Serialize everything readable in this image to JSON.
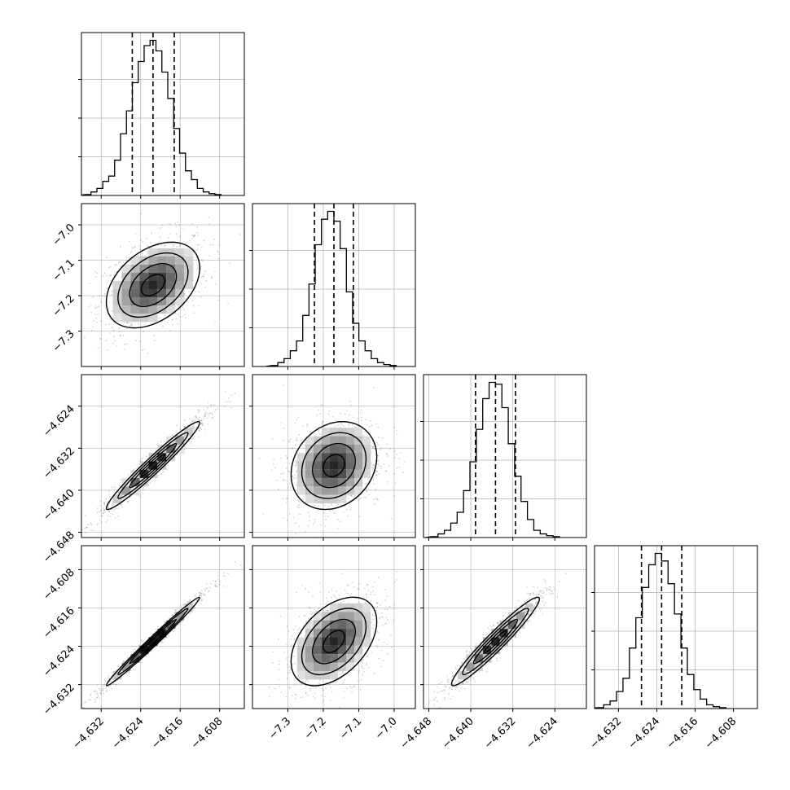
{
  "chart_data": {
    "type": "corner",
    "n_parameters": 4,
    "parameter_labels": [
      "",
      "",
      "",
      ""
    ],
    "parameters": [
      {
        "median": -4.6215,
        "q16": -4.6257,
        "q84": -4.6172,
        "sigma": 0.0043,
        "range": [
          -4.636,
          -4.603
        ],
        "ticks": [
          -4.632,
          -4.624,
          -4.616,
          -4.608
        ],
        "tick_labels": [
          "−4.632",
          "−4.624",
          "−4.616",
          "−4.608"
        ],
        "hist": [
          0.5,
          2,
          4,
          8,
          11,
          20,
          35,
          48,
          64,
          76,
          85,
          88,
          82,
          70,
          55,
          38,
          24,
          14,
          9,
          4,
          2,
          1,
          0.5
        ]
      },
      {
        "median": -7.17,
        "q16": -7.225,
        "q84": -7.115,
        "sigma": 0.055,
        "range": [
          -7.4,
          -6.94
        ],
        "ticks": [
          -7.3,
          -7.2,
          -7.1,
          -7.0
        ],
        "tick_labels": [
          "−7.3",
          "−7.2",
          "−7.1",
          "−7.0"
        ],
        "hist": [
          0.5,
          2,
          4,
          8,
          13,
          26,
          42,
          62,
          75,
          79,
          74,
          60,
          38,
          22,
          13,
          8,
          4,
          2,
          1,
          0.5
        ]
      },
      {
        "median": -4.6353,
        "q16": -4.6391,
        "q84": -4.6315,
        "sigma": 0.0038,
        "range": [
          -4.649,
          -4.618
        ],
        "ticks": [
          -4.648,
          -4.64,
          -4.632,
          -4.624
        ],
        "tick_labels": [
          "−4.648",
          "−4.640",
          "−4.632",
          "−4.624"
        ],
        "hist": [
          0.5,
          2,
          4,
          8,
          14,
          26,
          42,
          60,
          77,
          86,
          85,
          72,
          52,
          34,
          20,
          10,
          4,
          2,
          1,
          0.5
        ]
      },
      {
        "median": -4.623,
        "q16": -4.6272,
        "q84": -4.6188,
        "sigma": 0.0042,
        "range": [
          -4.637,
          -4.603
        ],
        "ticks": [
          -4.632,
          -4.624,
          -4.616,
          -4.608
        ],
        "tick_labels": [
          "−4.632",
          "−4.624",
          "−4.616",
          "−4.608"
        ],
        "hist": [
          0.5,
          2,
          4,
          9,
          16,
          32,
          48,
          64,
          76,
          82,
          78,
          66,
          50,
          32,
          18,
          10,
          5,
          2,
          1,
          0.5
        ]
      }
    ],
    "correlations": {
      "1-0": 0.4,
      "2-0": 0.97,
      "2-1": 0.2,
      "3-0": 0.99,
      "3-1": 0.45,
      "3-2": 0.96
    },
    "contour_levels_sigma": [
      0.5,
      1.0,
      1.5,
      2.0
    ],
    "quantile_lines": [
      "q16",
      "median",
      "q84"
    ],
    "grid": true,
    "colors": {
      "line": "#000000",
      "points": "#555555",
      "grid": "#b0b0b0"
    }
  }
}
